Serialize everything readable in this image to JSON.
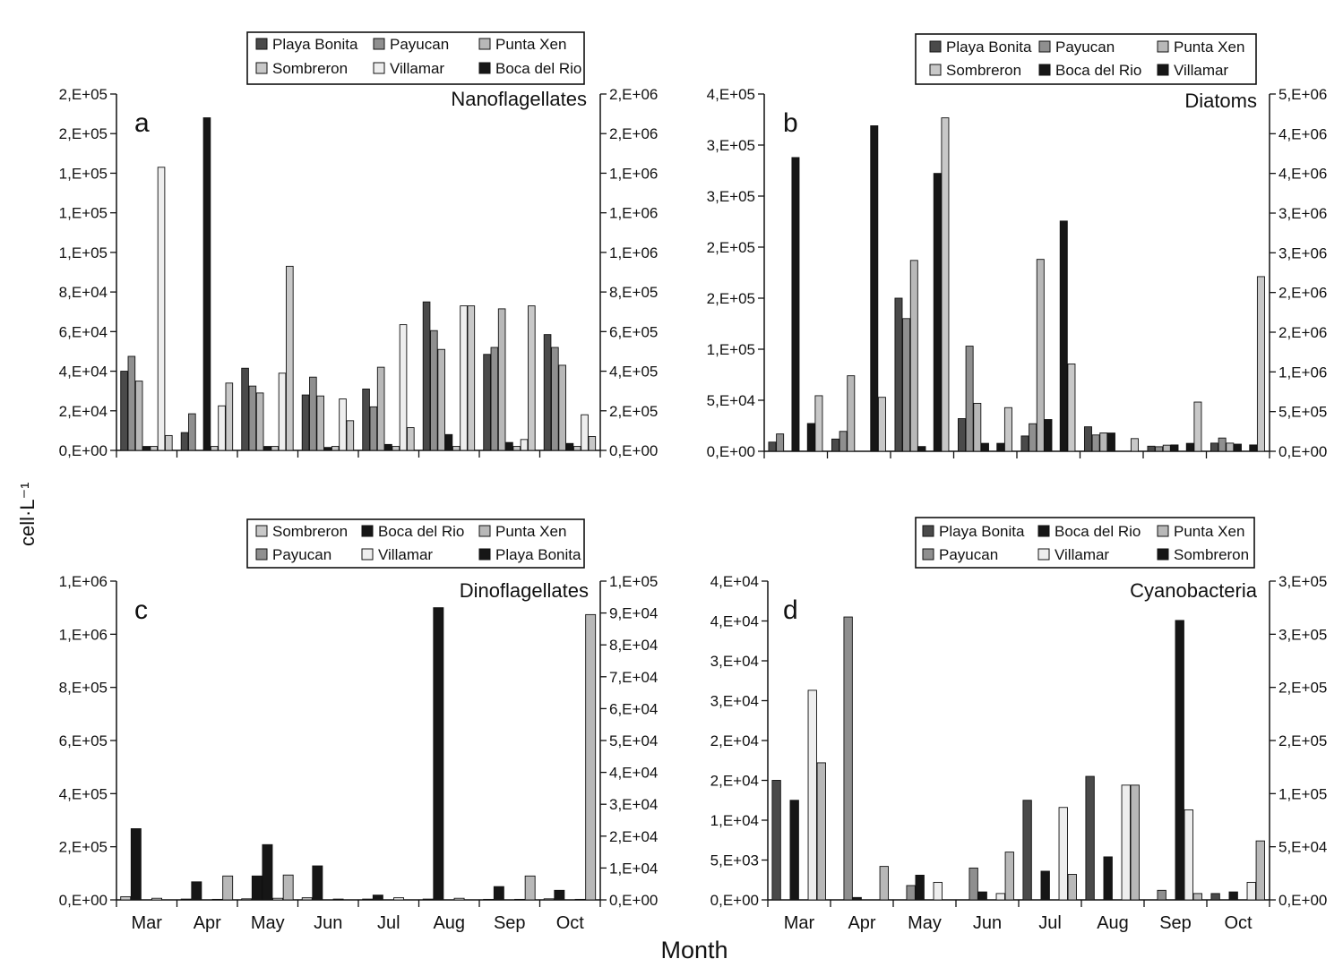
{
  "y_axis_title": "cell·L⁻¹",
  "x_axis_title": "Month",
  "colors": {
    "Playa Bonita": "#4a4a4a",
    "Payucan": "#8f8f8f",
    "Punta Xen": "#b8b8b8",
    "Sombreron": "#c8c8c8",
    "Villamar": "#eeeeee",
    "Boca del Rio": "#161616",
    "axis": "#111111"
  },
  "chart_data": [
    {
      "id": "a",
      "type": "bar",
      "panel_letter": "a",
      "title": "Nanoflagellates",
      "categories": [
        "Mar",
        "Apr",
        "May",
        "Jun",
        "Jul",
        "Aug",
        "Sep",
        "Oct"
      ],
      "show_month_labels": false,
      "legend": [
        "Playa Bonita",
        "Payucan",
        "Punta Xen",
        "Sombreron",
        "Villamar",
        "Boca del Rio"
      ],
      "legend_fills": [
        "#4a4a4a",
        "#8f8f8f",
        "#b8b8b8",
        "#c8c8c8",
        "#eeeeee",
        "#161616"
      ],
      "left_ticks": [
        "0,E+00",
        "2,E+04",
        "4,E+04",
        "6,E+04",
        "8,E+04",
        "1,E+05",
        "1,E+05",
        "1,E+05",
        "2,E+05",
        "2,E+05"
      ],
      "right_ticks": [
        "0,E+00",
        "2,E+05",
        "4,E+05",
        "6,E+05",
        "8,E+05",
        "1,E+06",
        "1,E+06",
        "1,E+06",
        "2,E+06",
        "2,E+06"
      ],
      "ylim_left": [
        0,
        180000
      ],
      "ylim_right": [
        0,
        1800000
      ],
      "series": [
        {
          "name": "Playa Bonita",
          "fill": "#4a4a4a",
          "axis": "left",
          "values": [
            40000,
            9000,
            41500,
            28000,
            31000,
            75000,
            48500,
            58500
          ]
        },
        {
          "name": "Payucan",
          "fill": "#8f8f8f",
          "axis": "left",
          "values": [
            47500,
            18500,
            32500,
            37000,
            22000,
            60500,
            52000,
            52000
          ]
        },
        {
          "name": "Punta Xen",
          "fill": "#b8b8b8",
          "axis": "left",
          "values": [
            35000,
            0,
            29000,
            27500,
            42000,
            51000,
            71500,
            43000
          ]
        },
        {
          "name": "Boca del Rio",
          "fill": "#161616",
          "axis": "right",
          "values": [
            20000,
            1680000,
            20000,
            15000,
            30000,
            80000,
            40000,
            35000
          ]
        },
        {
          "name": "Sombreron",
          "fill": "#c8c8c8",
          "axis": "left",
          "values": [
            2000,
            2000,
            2000,
            2000,
            2000,
            2000,
            2000,
            2000
          ]
        },
        {
          "name": "Villamar",
          "fill": "#eeeeee",
          "axis": "left",
          "values": [
            143000,
            22500,
            39000,
            26000,
            63500,
            73000,
            5500,
            18000
          ]
        },
        {
          "name": "Sombreron (right axis)",
          "fill": "#c8c8c8",
          "axis": "right",
          "values": [
            75000,
            340000,
            930000,
            150000,
            115000,
            730000,
            730000,
            70000
          ]
        }
      ]
    },
    {
      "id": "b",
      "type": "bar",
      "panel_letter": "b",
      "title": "Diatoms",
      "categories": [
        "Mar",
        "Apr",
        "May",
        "Jun",
        "Jul",
        "Aug",
        "Sep",
        "Oct"
      ],
      "show_month_labels": false,
      "legend": [
        "Playa Bonita",
        "Payucan",
        "Punta Xen",
        "Sombreron",
        "Boca del Rio",
        "Villamar"
      ],
      "legend_fills": [
        "#4a4a4a",
        "#8f8f8f",
        "#b8b8b8",
        "#c8c8c8",
        "#161616",
        "#161616"
      ],
      "left_ticks": [
        "0,E+00",
        "5,E+04",
        "1,E+05",
        "2,E+05",
        "2,E+05",
        "3,E+05",
        "3,E+05",
        "4,E+05"
      ],
      "right_ticks": [
        "0,E+00",
        "5,E+05",
        "1,E+06",
        "2,E+06",
        "2,E+06",
        "3,E+06",
        "3,E+06",
        "4,E+06",
        "4,E+06",
        "5,E+06"
      ],
      "ylim_left": [
        0,
        350000
      ],
      "ylim_right": [
        0,
        4500000
      ],
      "series": [
        {
          "name": "Playa Bonita",
          "fill": "#4a4a4a",
          "axis": "left",
          "values": [
            9000,
            12000,
            150000,
            32000,
            15000,
            24000,
            5000,
            8000
          ]
        },
        {
          "name": "Payucan",
          "fill": "#8f8f8f",
          "axis": "left",
          "values": [
            17000,
            19500,
            130000,
            103000,
            27000,
            16000,
            4500,
            13000
          ]
        },
        {
          "name": "Punta Xen",
          "fill": "#b8b8b8",
          "axis": "left",
          "values": [
            0,
            74000,
            187000,
            47000,
            188000,
            18000,
            6000,
            8000
          ]
        },
        {
          "name": "Boca del Rio",
          "fill": "#161616",
          "axis": "right",
          "values": [
            3700000,
            0,
            60000,
            100000,
            400000,
            230000,
            80000,
            90000
          ]
        },
        {
          "name": "Sombreron",
          "fill": "#c8c8c8",
          "axis": "left",
          "values": [
            0,
            0,
            0,
            0,
            0,
            0,
            0,
            0
          ]
        },
        {
          "name": "Villamar",
          "fill": "#161616",
          "axis": "right",
          "values": [
            350000,
            4100000,
            3500000,
            100000,
            2900000,
            0,
            100000,
            80000
          ]
        },
        {
          "name": "Villamar (light)",
          "fill": "#c8c8c8",
          "axis": "right",
          "values": [
            700000,
            680000,
            4200000,
            550000,
            1100000,
            160000,
            620000,
            2200000
          ]
        }
      ]
    },
    {
      "id": "c",
      "type": "bar",
      "panel_letter": "c",
      "title": "Dinoflagellates",
      "categories": [
        "Mar",
        "Apr",
        "May",
        "Jun",
        "Jul",
        "Aug",
        "Sep",
        "Oct"
      ],
      "show_month_labels": true,
      "legend": [
        "Sombreron",
        "Boca del Rio",
        "Punta Xen",
        "Payucan",
        "Villamar",
        "Playa Bonita"
      ],
      "legend_fills": [
        "#c8c8c8",
        "#161616",
        "#b8b8b8",
        "#8f8f8f",
        "#eeeeee",
        "#161616"
      ],
      "left_ticks": [
        "0,E+00",
        "2,E+05",
        "4,E+05",
        "6,E+05",
        "8,E+05",
        "1,E+06",
        "1,E+06"
      ],
      "right_ticks": [
        "0,E+00",
        "1,E+04",
        "2,E+04",
        "3,E+04",
        "4,E+04",
        "5,E+04",
        "6,E+04",
        "7,E+04",
        "8,E+04",
        "9,E+04",
        "1,E+05"
      ],
      "ylim_left": [
        0,
        1200000
      ],
      "ylim_right": [
        0,
        100000
      ],
      "series": [
        {
          "name": "Sombreron",
          "fill": "#c8c8c8",
          "axis": "left",
          "values": [
            12000,
            3000,
            4000,
            8000,
            3000,
            3000,
            2000,
            4000
          ]
        },
        {
          "name": "Boca del Rio",
          "fill": "#161616",
          "axis": "left",
          "values": [
            268000,
            68000,
            90000,
            128000,
            18000,
            1100000,
            50000,
            36000
          ]
        },
        {
          "name": "Playa Bonita",
          "fill": "#161616",
          "axis": "left",
          "values": [
            0,
            0,
            208000,
            0,
            0,
            0,
            0,
            0
          ]
        },
        {
          "name": "Villamar",
          "fill": "#eeeeee",
          "axis": "left",
          "values": [
            6000,
            2000,
            6000,
            3000,
            8000,
            6000,
            2000,
            2000
          ]
        },
        {
          "name": "Punta Xen",
          "fill": "#b8b8b8",
          "axis": "right",
          "values": [
            0,
            7500,
            7800,
            0,
            0,
            0,
            7500,
            89500
          ]
        }
      ]
    },
    {
      "id": "d",
      "type": "bar",
      "panel_letter": "d",
      "title": "Cyanobacteria",
      "categories": [
        "Mar",
        "Apr",
        "May",
        "Jun",
        "Jul",
        "Aug",
        "Sep",
        "Oct"
      ],
      "show_month_labels": true,
      "legend": [
        "Playa Bonita",
        "Boca del Rio",
        "Punta Xen",
        "Payucan",
        "Villamar",
        "Sombreron"
      ],
      "legend_fills": [
        "#4a4a4a",
        "#161616",
        "#b8b8b8",
        "#8f8f8f",
        "#eeeeee",
        "#161616"
      ],
      "left_ticks": [
        "0,E+00",
        "5,E+03",
        "1,E+04",
        "2,E+04",
        "2,E+04",
        "3,E+04",
        "3,E+04",
        "4,E+04",
        "4,E+04"
      ],
      "right_ticks": [
        "0,E+00",
        "5,E+04",
        "1,E+05",
        "2,E+05",
        "2,E+05",
        "3,E+05",
        "3,E+05"
      ],
      "ylim_left": [
        0,
        40000
      ],
      "ylim_right": [
        0,
        300000
      ],
      "series": [
        {
          "name": "Playa Bonita",
          "fill": "#4a4a4a",
          "axis": "left",
          "values": [
            15000,
            0,
            0,
            0,
            12500,
            15500,
            0,
            800
          ]
        },
        {
          "name": "Payucan",
          "fill": "#8f8f8f",
          "axis": "left",
          "values": [
            0,
            35500,
            1800,
            4000,
            0,
            0,
            1200,
            0
          ]
        },
        {
          "name": "Boca del Rio",
          "fill": "#161616",
          "axis": "left",
          "values": [
            12500,
            300,
            3100,
            1000,
            3600,
            5400,
            0,
            1000
          ]
        },
        {
          "name": "Sombreron",
          "fill": "#161616",
          "axis": "right",
          "values": [
            0,
            0,
            0,
            0,
            0,
            0,
            263000,
            0
          ]
        },
        {
          "name": "Villamar",
          "fill": "#eeeeee",
          "axis": "left",
          "values": [
            26300,
            0,
            2200,
            800,
            11600,
            14400,
            11300,
            2200
          ]
        },
        {
          "name": "Punta Xen",
          "fill": "#b8b8b8",
          "axis": "left",
          "values": [
            17200,
            4200,
            0,
            6000,
            3200,
            14400,
            800,
            7400
          ]
        }
      ]
    }
  ]
}
